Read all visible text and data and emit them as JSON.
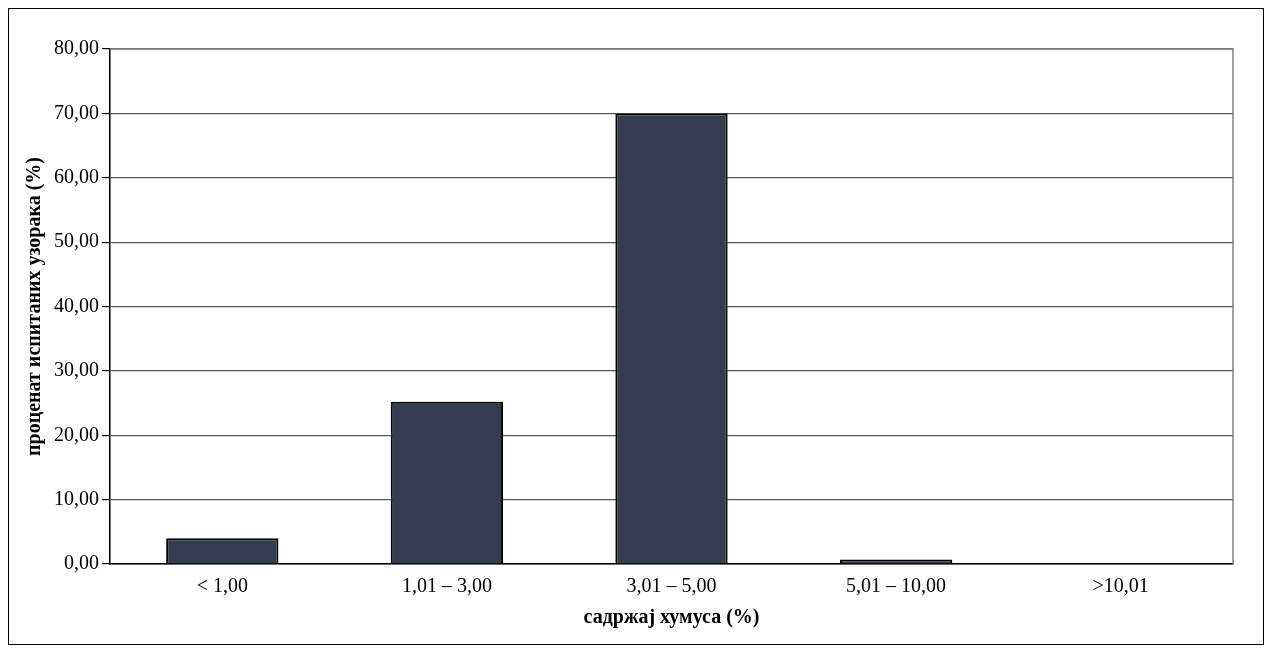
{
  "chart_data": {
    "type": "bar",
    "xlabel": "садржај хумуса (%)",
    "ylabel": "проценат испитаних узорака (%)",
    "categories": [
      "< 1,00",
      "1,01 – 3,00",
      "3,01 – 5,00",
      "5,01 – 10,00",
      ">10,01"
    ],
    "values": [
      4,
      25.2,
      70,
      0.7,
      0
    ],
    "color": "#333d4f",
    "ylim": [
      0,
      80
    ],
    "yticks": [
      {
        "value": 0,
        "label": "0,00"
      },
      {
        "value": 10,
        "label": "10,00"
      },
      {
        "value": 20,
        "label": "20,00"
      },
      {
        "value": 30,
        "label": "30,00"
      },
      {
        "value": 40,
        "label": "40,00"
      },
      {
        "value": 50,
        "label": "50,00"
      },
      {
        "value": 60,
        "label": "60,00"
      },
      {
        "value": 70,
        "label": "70,00"
      },
      {
        "value": 80,
        "label": "80,00"
      }
    ],
    "grid": "y",
    "legend": false
  }
}
